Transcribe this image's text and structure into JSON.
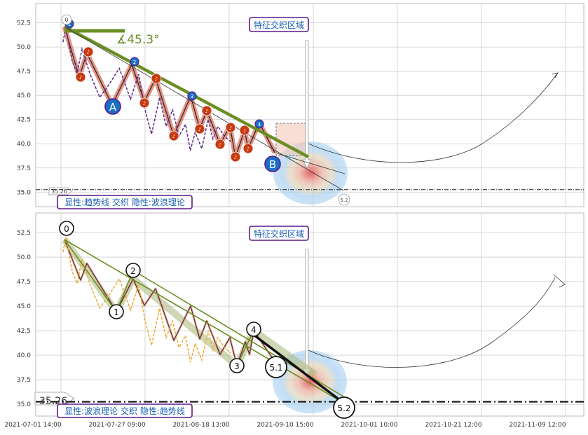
{
  "chart_data": [
    {
      "type": "line",
      "panel": "top",
      "ylim": [
        33.5,
        54.5
      ],
      "yticks": [
        35.0,
        37.5,
        40.0,
        42.5,
        45.0,
        47.5,
        50.0,
        52.5
      ],
      "hline": {
        "value": 35.26,
        "label": "35.26"
      },
      "annotation_top": "特征交织区域",
      "caption": "显性:趋势线 交织 隐性:波浪理论",
      "angle_label": "∡45.3°",
      "wave_labels": [
        "0",
        "1",
        "2",
        "3",
        "4",
        "5.2",
        "A",
        "B"
      ],
      "price_series": [
        {
          "x": 0.6,
          "y": 50.5
        },
        {
          "x": 1.5,
          "y": 52.0
        },
        {
          "x": 3.5,
          "y": 48.5
        },
        {
          "x": 5.0,
          "y": 47.3
        },
        {
          "x": 6.5,
          "y": 49.8
        },
        {
          "x": 9.0,
          "y": 47.2
        },
        {
          "x": 12.0,
          "y": 44.8
        },
        {
          "x": 15.0,
          "y": 46.2
        },
        {
          "x": 18.0,
          "y": 47.8
        },
        {
          "x": 19.5,
          "y": 46.5
        },
        {
          "x": 21.5,
          "y": 44.6
        },
        {
          "x": 24.0,
          "y": 47.2
        },
        {
          "x": 26.0,
          "y": 43.5
        },
        {
          "x": 28.0,
          "y": 41.0
        },
        {
          "x": 30.5,
          "y": 44.8
        },
        {
          "x": 32.5,
          "y": 41.8
        },
        {
          "x": 34.5,
          "y": 43.5
        },
        {
          "x": 36.5,
          "y": 40.8
        },
        {
          "x": 38.5,
          "y": 42.0
        },
        {
          "x": 40.0,
          "y": 39.3
        },
        {
          "x": 41.5,
          "y": 41.2
        },
        {
          "x": 43.5,
          "y": 39.5
        },
        {
          "x": 45.5,
          "y": 42.5
        },
        {
          "x": 47.0,
          "y": 40.5
        },
        {
          "x": 48.5,
          "y": 41.8
        },
        {
          "x": 50.5,
          "y": 40.8
        },
        {
          "x": 52.5,
          "y": 40.2
        }
      ]
    },
    {
      "type": "line",
      "panel": "bottom",
      "ylim": [
        33.8,
        54.5
      ],
      "yticks": [
        35.0,
        37.5,
        40.0,
        42.5,
        45.0,
        47.5,
        50.0,
        52.5
      ],
      "hline": {
        "value": 35.26,
        "label": "35.26"
      },
      "annotation_top": "特征交织区域",
      "caption": "显性:波浪理论 交织 隐性:趋势线",
      "wave_labels": [
        "0",
        "1",
        "2",
        "3",
        "4",
        "5.1",
        "5.2"
      ],
      "x_tick_labels": [
        "2021-07-01 14:00",
        "2021-07-27 09:00",
        "2021-08-18 13:00",
        "2021-09-10 15:00",
        "2021-10-01 10:00",
        "2021-10-21 12:00",
        "2021-11-09 12:00"
      ],
      "price_series": [
        {
          "x": 0.6,
          "y": 50.5
        },
        {
          "x": 1.5,
          "y": 52.0
        },
        {
          "x": 3.5,
          "y": 48.5
        },
        {
          "x": 5.0,
          "y": 47.3
        },
        {
          "x": 6.5,
          "y": 49.8
        },
        {
          "x": 9.0,
          "y": 47.2
        },
        {
          "x": 12.0,
          "y": 44.8
        },
        {
          "x": 15.0,
          "y": 46.2
        },
        {
          "x": 18.0,
          "y": 47.8
        },
        {
          "x": 19.5,
          "y": 46.5
        },
        {
          "x": 21.5,
          "y": 44.6
        },
        {
          "x": 24.0,
          "y": 47.2
        },
        {
          "x": 26.0,
          "y": 43.5
        },
        {
          "x": 28.0,
          "y": 41.0
        },
        {
          "x": 30.5,
          "y": 44.8
        },
        {
          "x": 32.5,
          "y": 41.8
        },
        {
          "x": 34.5,
          "y": 43.5
        },
        {
          "x": 36.5,
          "y": 40.8
        },
        {
          "x": 38.5,
          "y": 42.0
        },
        {
          "x": 40.0,
          "y": 39.3
        },
        {
          "x": 41.5,
          "y": 41.2
        },
        {
          "x": 43.5,
          "y": 39.5
        },
        {
          "x": 45.5,
          "y": 42.5
        },
        {
          "x": 47.0,
          "y": 40.5
        },
        {
          "x": 48.5,
          "y": 41.8
        },
        {
          "x": 50.5,
          "y": 40.8
        },
        {
          "x": 52.5,
          "y": 40.2
        }
      ]
    }
  ],
  "colors": {
    "price_top": "#5b2c8a",
    "price_bottom": "#f0a830",
    "trend": "#6b8e23",
    "zigzag_fill": "#e07a6a",
    "marker": "#c83a10",
    "label_border": "#5b1a8a",
    "label_text": "#1a5fb4",
    "grid": "#cccccc"
  }
}
